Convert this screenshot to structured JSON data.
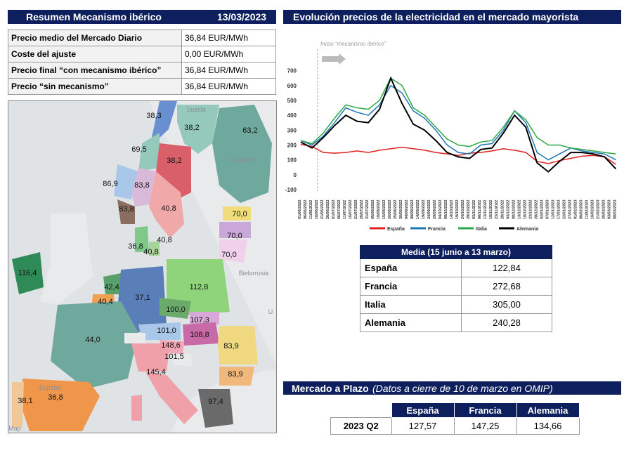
{
  "header": {
    "title": "Resumen Mecanismo ibérico",
    "date": "13/03/2023"
  },
  "summary": [
    {
      "label": "Precio medio del Mercado Diario",
      "value": "36,84 EUR/MWh"
    },
    {
      "label": "Coste del ajuste",
      "value": "0,00 EUR/MWh"
    },
    {
      "label": "Precio final “con mecanismo ibérico”",
      "value": "36,84 EUR/MWh"
    },
    {
      "label": "Precio “sin mecanismo”",
      "value": "36,84 EUR/MWh"
    }
  ],
  "map": {
    "prices": [
      {
        "label": "38,3"
      },
      {
        "label": "38,2"
      },
      {
        "label": "63,2"
      },
      {
        "label": "69,5"
      },
      {
        "label": "38,2"
      },
      {
        "label": "86,9"
      },
      {
        "label": "83,8"
      },
      {
        "label": "83,8"
      },
      {
        "label": "40,8"
      },
      {
        "label": "70,0"
      },
      {
        "label": "70,0"
      },
      {
        "label": "70,0"
      },
      {
        "label": "36,8"
      },
      {
        "label": "40,8"
      },
      {
        "label": "40,8"
      },
      {
        "label": "116,4"
      },
      {
        "label": "42,4"
      },
      {
        "label": "40,4"
      },
      {
        "label": "37,1"
      },
      {
        "label": "112,8"
      },
      {
        "label": "100,0"
      },
      {
        "label": "107,3"
      },
      {
        "label": "101,0"
      },
      {
        "label": "108,8"
      },
      {
        "label": "44,0"
      },
      {
        "label": "148,6"
      },
      {
        "label": "101,5"
      },
      {
        "label": "83,9"
      },
      {
        "label": "145,4"
      },
      {
        "label": "83,9"
      },
      {
        "label": "38,1"
      },
      {
        "label": "36,8"
      },
      {
        "label": "97,4"
      }
    ],
    "country_names": [
      {
        "label": "Suecia"
      },
      {
        "label": "Finlandia"
      },
      {
        "label": "Bielorrusia"
      },
      {
        "label": "U"
      },
      {
        "label": "España"
      }
    ],
    "attribution": "Map"
  },
  "chart_title": "Evolución precios de la electricidad en el mercado mayorista",
  "chart_data": {
    "type": "line",
    "annotation": "Inicio “mecanismo ibérico”",
    "yticks": [
      "-100",
      "0",
      "100",
      "200",
      "300",
      "400",
      "500",
      "600",
      "700"
    ],
    "ylim": [
      -100,
      750
    ],
    "x_range": [
      "01/06/2022",
      "09/03/2023"
    ],
    "xtick_labels": [
      "01/06/2022",
      "06/06/2022",
      "11/06/2022",
      "16/06/2022",
      "21/06/2022",
      "26/06/2022",
      "01/07/2022",
      "06/07/2022",
      "11/07/2022",
      "16/07/2022",
      "21/07/2022",
      "26/07/2022",
      "31/07/2022",
      "05/08/2022",
      "10/08/2022",
      "15/08/2022",
      "20/08/2022",
      "25/08/2022",
      "30/08/2022",
      "04/09/2022",
      "09/09/2022",
      "14/09/2022",
      "19/09/2022",
      "24/09/2022",
      "29/09/2022",
      "04/10/2022",
      "09/10/2022",
      "14/10/2022",
      "19/10/2022",
      "24/10/2022",
      "29/10/2022",
      "03/11/2022",
      "08/11/2022",
      "13/11/2022",
      "18/11/2022",
      "23/11/2022",
      "28/11/2022",
      "03/12/2022",
      "08/12/2022",
      "13/12/2022",
      "18/12/2022",
      "23/12/2022",
      "28/12/2022",
      "02/01/2023",
      "07/01/2023",
      "12/01/2023",
      "17/01/2023",
      "22/01/2023",
      "27/01/2023",
      "01/02/2023",
      "06/02/2023",
      "11/02/2023",
      "16/02/2023",
      "21/02/2023",
      "26/02/2023",
      "03/03/2023",
      "08/03/2023"
    ],
    "series": [
      {
        "name": "España",
        "color": "#e02020",
        "x": [
          "01/06/2022",
          "11/06/2022",
          "21/06/2022",
          "01/07/2022",
          "11/07/2022",
          "21/07/2022",
          "31/07/2022",
          "10/08/2022",
          "20/08/2022",
          "30/08/2022",
          "09/09/2022",
          "19/09/2022",
          "29/09/2022",
          "09/10/2022",
          "19/10/2022",
          "29/10/2022",
          "08/11/2022",
          "18/11/2022",
          "28/11/2022",
          "08/12/2022",
          "18/12/2022",
          "28/12/2022",
          "07/01/2023",
          "17/01/2023",
          "27/01/2023",
          "06/02/2023",
          "16/02/2023",
          "26/02/2023",
          "08/03/2023"
        ],
        "values": [
          205,
          190,
          150,
          145,
          150,
          160,
          150,
          165,
          175,
          185,
          175,
          165,
          150,
          140,
          130,
          145,
          150,
          160,
          175,
          165,
          150,
          90,
          75,
          95,
          110,
          125,
          130,
          120,
          70
        ]
      },
      {
        "name": "Francia",
        "color": "#1f77b4",
        "x": [
          "01/06/2022",
          "11/06/2022",
          "21/06/2022",
          "01/07/2022",
          "11/07/2022",
          "21/07/2022",
          "31/07/2022",
          "10/08/2022",
          "20/08/2022",
          "30/08/2022",
          "09/09/2022",
          "19/09/2022",
          "29/09/2022",
          "09/10/2022",
          "19/10/2022",
          "29/10/2022",
          "08/11/2022",
          "18/11/2022",
          "28/11/2022",
          "08/12/2022",
          "18/12/2022",
          "28/12/2022",
          "07/01/2023",
          "17/01/2023",
          "27/01/2023",
          "06/02/2023",
          "16/02/2023",
          "26/02/2023",
          "08/03/2023"
        ],
        "values": [
          230,
          200,
          260,
          350,
          450,
          420,
          400,
          470,
          600,
          550,
          430,
          380,
          300,
          200,
          150,
          140,
          200,
          210,
          300,
          430,
          350,
          150,
          100,
          140,
          180,
          160,
          150,
          140,
          100
        ]
      },
      {
        "name": "Italia",
        "color": "#2ca84a",
        "x": [
          "01/06/2022",
          "11/06/2022",
          "21/06/2022",
          "01/07/2022",
          "11/07/2022",
          "21/07/2022",
          "31/07/2022",
          "10/08/2022",
          "20/08/2022",
          "30/08/2022",
          "09/09/2022",
          "19/09/2022",
          "29/09/2022",
          "09/10/2022",
          "19/10/2022",
          "29/10/2022",
          "08/11/2022",
          "18/11/2022",
          "28/11/2022",
          "08/12/2022",
          "18/12/2022",
          "28/12/2022",
          "07/01/2023",
          "17/01/2023",
          "27/01/2023",
          "06/02/2023",
          "16/02/2023",
          "26/02/2023",
          "08/03/2023"
        ],
        "values": [
          230,
          210,
          280,
          380,
          470,
          450,
          440,
          500,
          650,
          600,
          450,
          400,
          320,
          240,
          200,
          190,
          220,
          230,
          320,
          430,
          370,
          250,
          200,
          200,
          180,
          170,
          160,
          150,
          140
        ]
      },
      {
        "name": "Alemania",
        "color": "#000000",
        "x": [
          "01/06/2022",
          "11/06/2022",
          "21/06/2022",
          "01/07/2022",
          "11/07/2022",
          "21/07/2022",
          "31/07/2022",
          "10/08/2022",
          "20/08/2022",
          "30/08/2022",
          "09/09/2022",
          "19/09/2022",
          "29/09/2022",
          "09/10/2022",
          "19/10/2022",
          "29/10/2022",
          "08/11/2022",
          "18/11/2022",
          "28/11/2022",
          "08/12/2022",
          "18/12/2022",
          "28/12/2022",
          "07/01/2023",
          "17/01/2023",
          "27/01/2023",
          "06/02/2023",
          "16/02/2023",
          "26/02/2023",
          "08/03/2023"
        ],
        "values": [
          220,
          180,
          250,
          330,
          400,
          360,
          350,
          440,
          650,
          480,
          340,
          300,
          230,
          150,
          120,
          110,
          170,
          180,
          280,
          400,
          320,
          80,
          20,
          90,
          150,
          150,
          140,
          120,
          40
        ]
      }
    ]
  },
  "media_table": {
    "header": "Media (15 junio a 13 marzo)",
    "rows": [
      {
        "country": "España",
        "value": "122,84"
      },
      {
        "country": "Francia",
        "value": "272,68"
      },
      {
        "country": "Italia",
        "value": "305,00"
      },
      {
        "country": "Alemania",
        "value": "240,28"
      }
    ]
  },
  "plazo": {
    "title": "Mercado a Plazo",
    "subtitle": "(Datos a cierre de 10 de marzo en OMIP)",
    "columns": [
      "España",
      "Francia",
      "Alemania"
    ],
    "row_label": "2023 Q2",
    "values": [
      "127,57",
      "147,25",
      "134,66"
    ]
  }
}
